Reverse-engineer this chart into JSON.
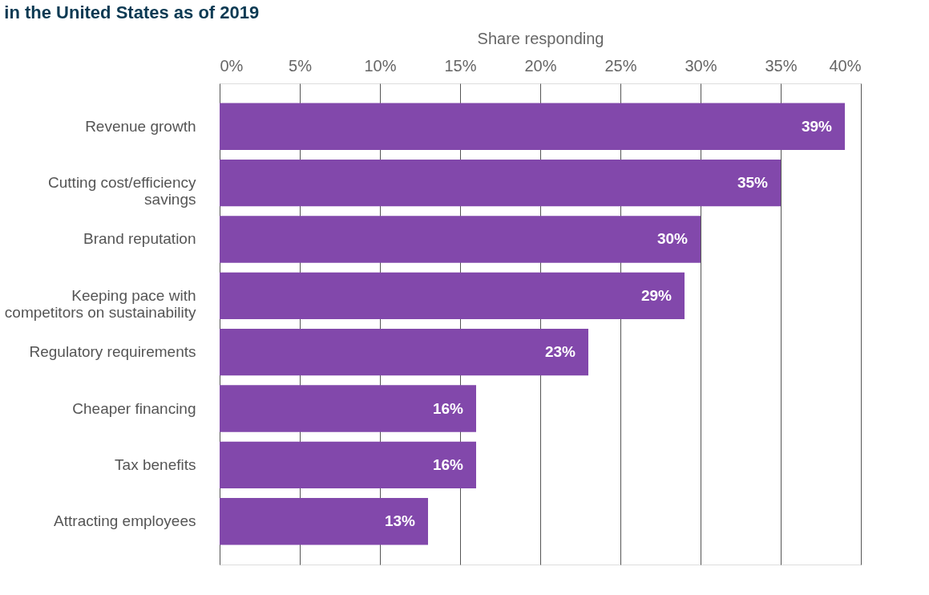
{
  "chart_data": {
    "type": "bar",
    "orientation": "horizontal",
    "title": "in the United States as of 2019",
    "xlabel": "Share responding",
    "categories": [
      "Revenue growth",
      "Cutting cost/efficiency\nsavings",
      "Brand reputation",
      "Keeping pace with\ncompetitors on sustainability",
      "Regulatory requirements",
      "Cheaper financing",
      "Tax benefits",
      "Attracting employees"
    ],
    "values": [
      39,
      35,
      30,
      29,
      23,
      16,
      16,
      13
    ],
    "value_labels": [
      "39%",
      "35%",
      "30%",
      "29%",
      "23%",
      "16%",
      "16%",
      "13%"
    ],
    "color": "#8248ab",
    "xlim": [
      0,
      40
    ],
    "xticks": [
      {
        "value": 0,
        "label": "0%"
      },
      {
        "value": 5,
        "label": "5%"
      },
      {
        "value": 10,
        "label": "10%"
      },
      {
        "value": 15,
        "label": "15%"
      },
      {
        "value": 20,
        "label": "20%"
      },
      {
        "value": 25,
        "label": "25%"
      },
      {
        "value": 30,
        "label": "30%"
      },
      {
        "value": 35,
        "label": "35%"
      },
      {
        "value": 40,
        "label": "40%"
      }
    ],
    "grid": "x"
  }
}
